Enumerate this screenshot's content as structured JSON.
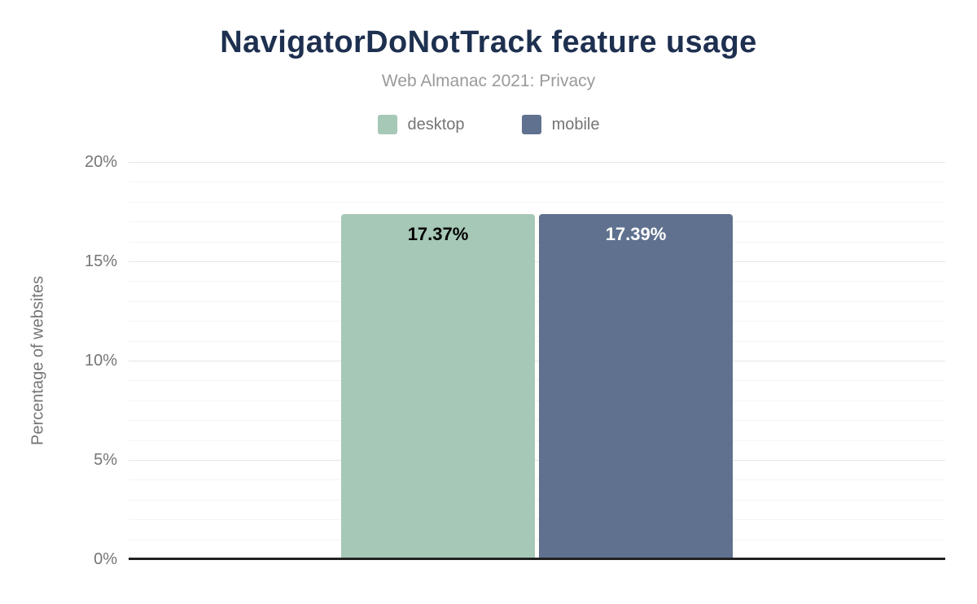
{
  "chart_data": {
    "type": "bar",
    "title": "NavigatorDoNotTrack feature usage",
    "subtitle": "Web Almanac 2021: Privacy",
    "ylabel": "Percentage of websites",
    "ylim": [
      0,
      20
    ],
    "grid": true,
    "minor_grid_step": 1,
    "major_grid_step": 5,
    "legend_position": "top",
    "yticks": [
      {
        "value": 0,
        "label": "0%"
      },
      {
        "value": 5,
        "label": "5%"
      },
      {
        "value": 10,
        "label": "10%"
      },
      {
        "value": 15,
        "label": "15%"
      },
      {
        "value": 20,
        "label": "20%"
      }
    ],
    "series": [
      {
        "name": "desktop",
        "value": 17.37,
        "data_label": "17.37%",
        "color": "#a6c8b6",
        "label_color": "#000000"
      },
      {
        "name": "mobile",
        "value": 17.39,
        "data_label": "17.39%",
        "color": "#5f718e",
        "label_color": "#ffffff"
      }
    ]
  },
  "colors": {
    "title": "#1e3050",
    "subtitle": "#9a9a9a",
    "axis_text": "#757575",
    "major_grid": "#e6e6e6",
    "minor_grid": "#f4f4f4",
    "baseline": "#212121"
  }
}
